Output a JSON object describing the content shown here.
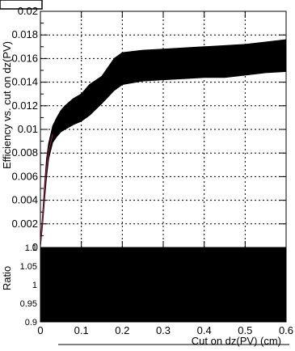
{
  "chart_data": [
    {
      "panel": "top",
      "type": "area",
      "ylabel": "Efficiency vs. cut on dz(PV)",
      "xlim": [
        0,
        0.6
      ],
      "ylim": [
        0,
        0.02
      ],
      "x_ticks": [
        0,
        0.1,
        0.2,
        0.3,
        0.4,
        0.5,
        0.6
      ],
      "y_ticks": [
        0,
        0.002,
        0.004,
        0.006,
        0.008,
        0.01,
        0.012,
        0.014,
        0.016,
        0.018,
        0.02
      ],
      "y_tick_labels": [
        "0",
        "0.002",
        "0.004",
        "0.006",
        "0.008",
        "0.01",
        "0.012",
        "0.014",
        "0.016",
        "0.018",
        "0.02"
      ],
      "grid": true,
      "series": [
        {
          "x": [
            0,
            0.005,
            0.01,
            0.015,
            0.02,
            0.03,
            0.04,
            0.05,
            0.06,
            0.08,
            0.1,
            0.12,
            0.15,
            0.18,
            0.2,
            0.25,
            0.3,
            0.35,
            0.4,
            0.45,
            0.5,
            0.55,
            0.6
          ],
          "low": [
            0.0001,
            0.0018,
            0.004,
            0.006,
            0.0075,
            0.0089,
            0.0094,
            0.0098,
            0.01,
            0.0104,
            0.0107,
            0.0112,
            0.0122,
            0.0133,
            0.0138,
            0.0141,
            0.0142,
            0.0143,
            0.0144,
            0.0144,
            0.0146,
            0.0148,
            0.0149
          ],
          "high": [
            0.0004,
            0.0026,
            0.0052,
            0.0075,
            0.0088,
            0.0103,
            0.011,
            0.0116,
            0.012,
            0.0126,
            0.013,
            0.0138,
            0.0145,
            0.016,
            0.0165,
            0.0167,
            0.0168,
            0.0169,
            0.017,
            0.0171,
            0.0172,
            0.0174,
            0.0176
          ]
        }
      ]
    },
    {
      "panel": "bottom",
      "type": "area",
      "ylabel": "Ratio",
      "xlabel": "Cut on dz(PV) (cm)",
      "xlim": [
        0,
        0.6
      ],
      "ylim": [
        0.9,
        1.1
      ],
      "x_ticks": [
        0,
        0.1,
        0.2,
        0.3,
        0.4,
        0.5,
        0.6
      ],
      "x_tick_labels": [
        "0",
        "0.1",
        "0.2",
        "0.3",
        "0.4",
        "0.5",
        "0.6"
      ],
      "y_ticks": [
        0.9,
        0.95,
        1,
        1.05,
        1.1
      ],
      "y_tick_labels": [
        "0.9",
        "0.95",
        "1",
        "1.05",
        "1.1"
      ],
      "band": {
        "low": 0.9,
        "high": 1.1,
        "x": [
          0,
          0.6
        ]
      }
    }
  ]
}
